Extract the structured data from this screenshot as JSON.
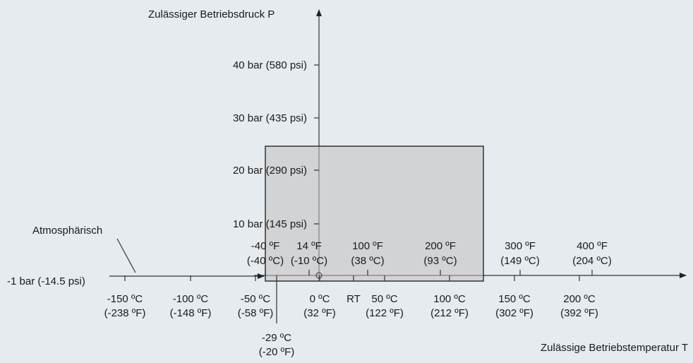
{
  "y_axis": {
    "label": "Zulässiger Betriebsdruck P",
    "ticks": [
      "40 bar (580 psi)",
      "30 bar (435 psi)",
      "20 bar (290 psi)",
      "10 bar (145 psi)"
    ]
  },
  "x_axis": {
    "label": "Zulässige Betriebstemperatur T",
    "lower_ticks": [
      [
        "-150 ºC",
        "(-238 ºF)"
      ],
      [
        "-100 ºC",
        "(-148 ºF)"
      ],
      [
        "-50 ºC",
        "(-58 ºF)"
      ],
      [
        "0 ºC",
        "(32 ºF)"
      ],
      [
        "50 ºC",
        "(122 ºF)"
      ],
      [
        "100 ºC",
        "(212 ºF)"
      ],
      [
        "150 ºC",
        "(302 ºF)"
      ],
      [
        "200 ºC",
        "(392 ºF)"
      ]
    ],
    "rt": "RT",
    "upper_ticks": [
      [
        "-40 ºF",
        "(-40 ºC)"
      ],
      [
        "14 ºF",
        "(-10 ºC)"
      ],
      [
        "100 ºF",
        "(38 ºC)"
      ],
      [
        "200 ºF",
        "(93 ºC)"
      ],
      [
        "300 ºF",
        "(149 ºC)"
      ],
      [
        "400 ºF",
        "(204 ºC)"
      ]
    ]
  },
  "baseline": {
    "label": "-1 bar (-14.5 psi)"
  },
  "atmospheric": "Atmosphärisch",
  "marker": [
    "-29 ºC",
    "(-20 ºF)"
  ]
}
